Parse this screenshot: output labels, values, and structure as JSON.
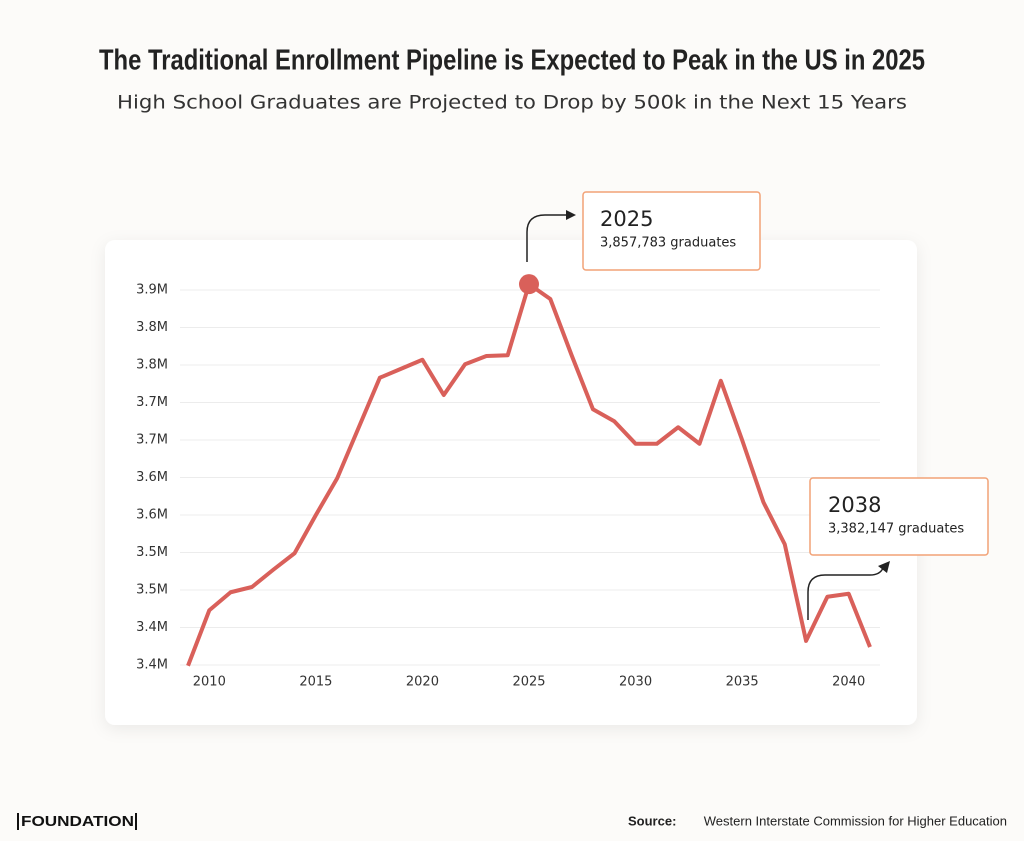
{
  "chart_data": {
    "type": "line",
    "title": "The Traditional Enrollment Pipeline is Expected to Peak in the US in 2025",
    "subtitle": "High School Graduates are Projected to Drop by 500k in the Next 15 Years",
    "x": [
      2009,
      2010,
      2011,
      2012,
      2013,
      2014,
      2015,
      2016,
      2017,
      2018,
      2019,
      2020,
      2021,
      2022,
      2023,
      2024,
      2025,
      2026,
      2027,
      2028,
      2029,
      2030,
      2031,
      2032,
      2033,
      2034,
      2035,
      2036,
      2037,
      2038,
      2039,
      2040,
      2041
    ],
    "values": [
      3349000,
      3423000,
      3447000,
      3454000,
      3477000,
      3499000,
      3550000,
      3599000,
      3666000,
      3733000,
      3745000,
      3757000,
      3710000,
      3751000,
      3762000,
      3763000,
      3857783,
      3838000,
      3763000,
      3691000,
      3675000,
      3645000,
      3645000,
      3667000,
      3645000,
      3729000,
      3650000,
      3567000,
      3511000,
      3382147,
      3441000,
      3445000,
      3374000
    ],
    "color": "#d9605a",
    "xlim": [
      2009,
      2041
    ],
    "xticks": [
      2010,
      2015,
      2020,
      2025,
      2030,
      2035,
      2040
    ],
    "ylim": [
      3350000,
      3850000
    ],
    "yticks": [
      {
        "value": 3350000,
        "label": "3.4M"
      },
      {
        "value": 3400000,
        "label": "3.4M"
      },
      {
        "value": 3450000,
        "label": "3.5M"
      },
      {
        "value": 3500000,
        "label": "3.5M"
      },
      {
        "value": 3550000,
        "label": "3.6M"
      },
      {
        "value": 3600000,
        "label": "3.6M"
      },
      {
        "value": 3650000,
        "label": "3.7M"
      },
      {
        "value": 3700000,
        "label": "3.7M"
      },
      {
        "value": 3750000,
        "label": "3.8M"
      },
      {
        "value": 3800000,
        "label": "3.8M"
      },
      {
        "value": 3850000,
        "label": "3.9M"
      }
    ],
    "grid": true,
    "annotations": [
      {
        "year": 2025,
        "text": "3,857,783 graduates"
      },
      {
        "year": 2038,
        "text": "3,382,147 graduates"
      }
    ],
    "footer": {
      "logo": "FOUNDATION",
      "source_label": "Source:",
      "source": "Western Interstate Commission for Higher Education"
    }
  }
}
